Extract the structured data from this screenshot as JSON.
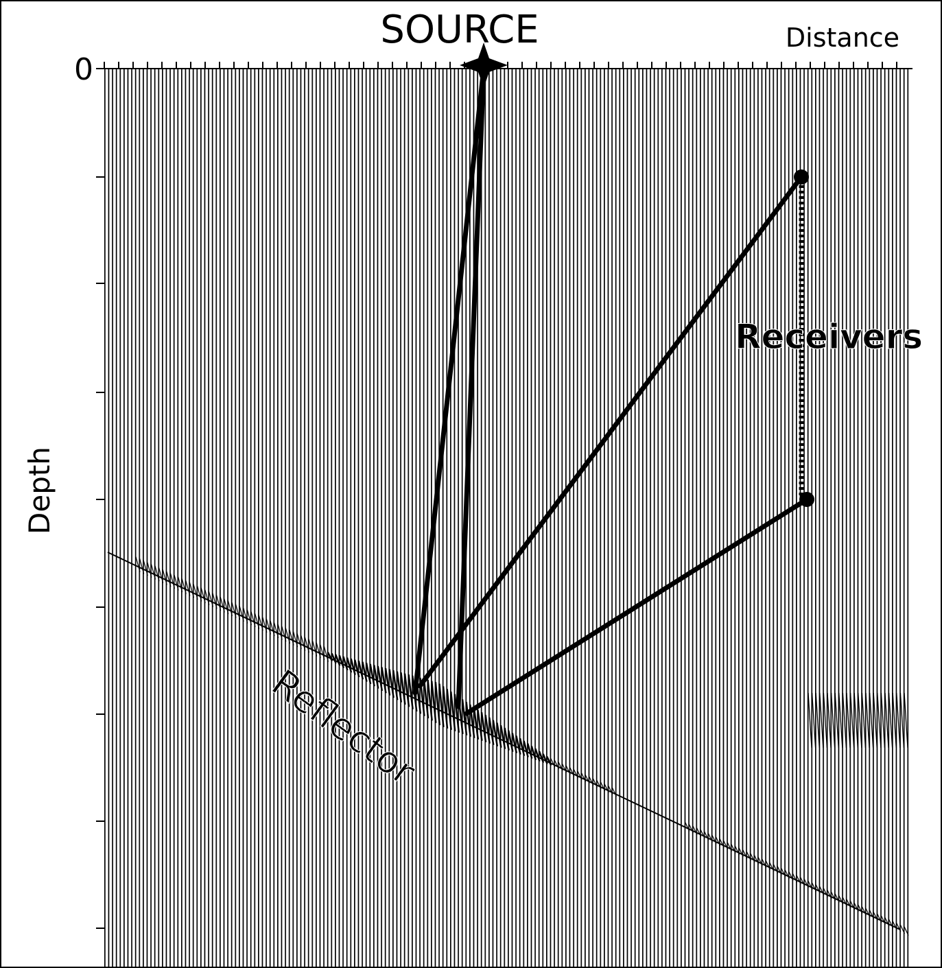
{
  "labels": {
    "source": "SOURCE",
    "distance": "Distance",
    "origin": "0",
    "depth": "Depth",
    "receivers": "Receivers",
    "reflector": "Reflector"
  }
}
